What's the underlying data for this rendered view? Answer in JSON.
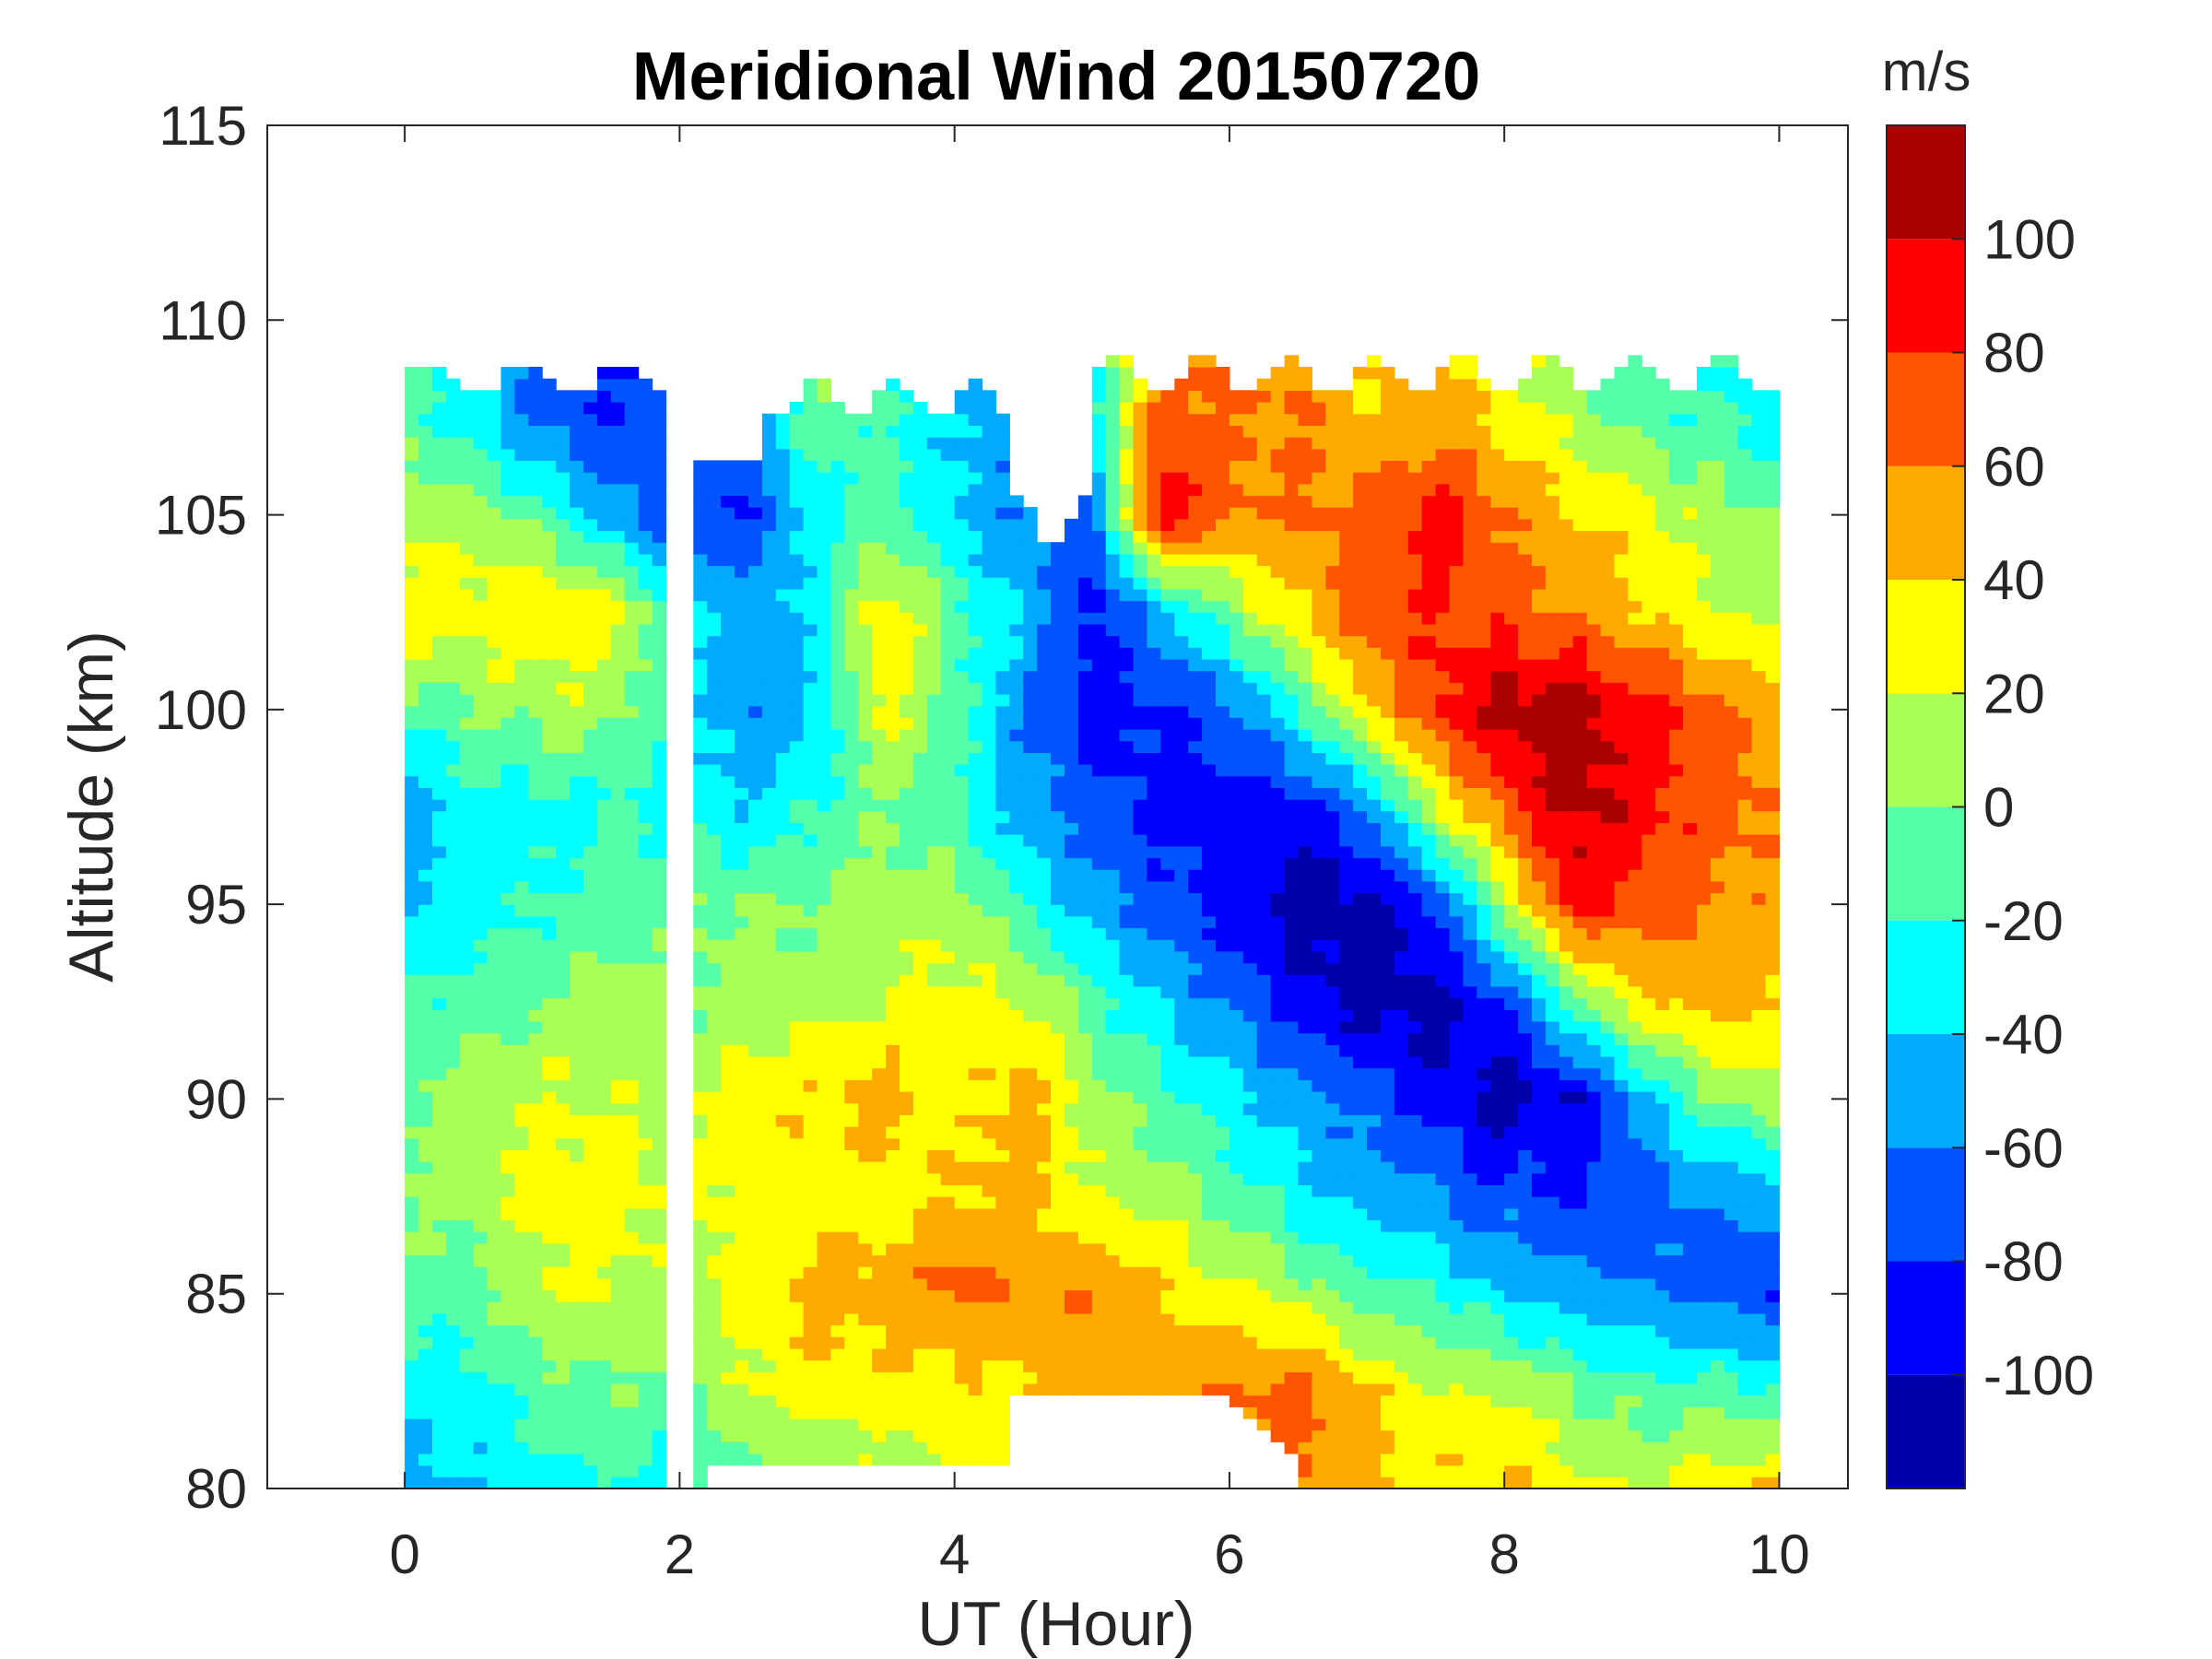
{
  "chart_data": {
    "type": "heatmap",
    "subtype": "filled-contour",
    "title": "Meridional Wind 20150720",
    "xlabel": "UT (Hour)",
    "ylabel": "Altitude (km)",
    "colorbar_label": "m/s",
    "xlim": [
      -1,
      10.5
    ],
    "ylim": [
      80,
      115
    ],
    "xticks": [
      0,
      2,
      4,
      6,
      8,
      10
    ],
    "yticks": [
      80,
      85,
      90,
      95,
      100,
      105,
      110,
      115
    ],
    "colorbar": {
      "range": [
        -120,
        120
      ],
      "levels": [
        -120,
        -100,
        -80,
        -60,
        -40,
        -20,
        0,
        20,
        40,
        60,
        80,
        100,
        120
      ],
      "ticks": [
        -100,
        -80,
        -60,
        -40,
        -20,
        0,
        20,
        40,
        60,
        80,
        100
      ],
      "colors": [
        "#0000AA",
        "#0000FF",
        "#0055FF",
        "#00AAFF",
        "#00FFFF",
        "#55FFAA",
        "#AAFF55",
        "#FFFF00",
        "#FFAA00",
        "#FF5500",
        "#FF0000",
        "#AA0000"
      ]
    },
    "x": [
      0,
      0.5,
      1,
      1.5,
      2,
      2.5,
      3,
      3.5,
      4,
      4.5,
      5,
      5.5,
      6,
      6.5,
      7,
      7.5,
      8,
      8.5,
      9,
      9.5,
      10
    ],
    "y": [
      80,
      82.5,
      85,
      87.5,
      90,
      92.5,
      95,
      97.5,
      100,
      102.5,
      105,
      107.5
    ],
    "z": [
      [
        -50,
        -40,
        -30,
        -20,
        -30,
        -10,
        0,
        10,
        20,
        30,
        40,
        50,
        50,
        60,
        50,
        40,
        40,
        30,
        20,
        30,
        40
      ],
      [
        -30,
        -30,
        -10,
        0,
        -10,
        20,
        30,
        30,
        30,
        40,
        50,
        50,
        60,
        70,
        40,
        20,
        20,
        0,
        -10,
        -10,
        -20
      ],
      [
        -10,
        -10,
        20,
        20,
        10,
        30,
        50,
        50,
        70,
        50,
        60,
        40,
        30,
        10,
        -10,
        -20,
        -40,
        -50,
        -60,
        -70,
        -80
      ],
      [
        0,
        10,
        30,
        30,
        20,
        30,
        30,
        30,
        40,
        50,
        20,
        10,
        -10,
        -30,
        -50,
        -60,
        -70,
        -80,
        -70,
        -60,
        -50
      ],
      [
        0,
        10,
        20,
        20,
        10,
        30,
        40,
        50,
        30,
        50,
        10,
        -10,
        -30,
        -50,
        -70,
        -90,
        -110,
        -100,
        -50,
        0,
        10
      ],
      [
        -20,
        -10,
        0,
        10,
        0,
        10,
        10,
        20,
        30,
        20,
        -10,
        -40,
        -60,
        -90,
        -110,
        -110,
        -80,
        -10,
        40,
        50,
        40
      ],
      [
        -50,
        -30,
        -20,
        -10,
        0,
        0,
        0,
        10,
        10,
        -20,
        -50,
        -70,
        -90,
        -110,
        -110,
        -80,
        10,
        90,
        70,
        60,
        50
      ],
      [
        -50,
        -30,
        -30,
        -20,
        -30,
        -40,
        -20,
        0,
        -20,
        -50,
        -70,
        -90,
        -90,
        -90,
        -60,
        20,
        70,
        110,
        90,
        70,
        60
      ],
      [
        -10,
        0,
        10,
        10,
        -30,
        -60,
        -40,
        30,
        -10,
        -60,
        -90,
        -80,
        -70,
        -20,
        40,
        80,
        110,
        110,
        90,
        70,
        50
      ],
      [
        30,
        30,
        40,
        30,
        -20,
        -50,
        -30,
        40,
        -10,
        -40,
        -90,
        -50,
        0,
        40,
        70,
        80,
        70,
        60,
        40,
        20,
        10
      ],
      [
        20,
        10,
        -10,
        -50,
        -80,
        -80,
        -30,
        -10,
        -40,
        -60,
        -70,
        100,
        60,
        60,
        70,
        90,
        60,
        40,
        30,
        10,
        0
      ],
      [
        -10,
        -30,
        -70,
        -80,
        -70,
        -60,
        0,
        -20,
        -40,
        -60,
        -30,
        70,
        60,
        60,
        40,
        50,
        30,
        10,
        -10,
        -20,
        -30
      ]
    ],
    "data_gap_hours": [
      1.9,
      2.1
    ],
    "grid": false
  }
}
